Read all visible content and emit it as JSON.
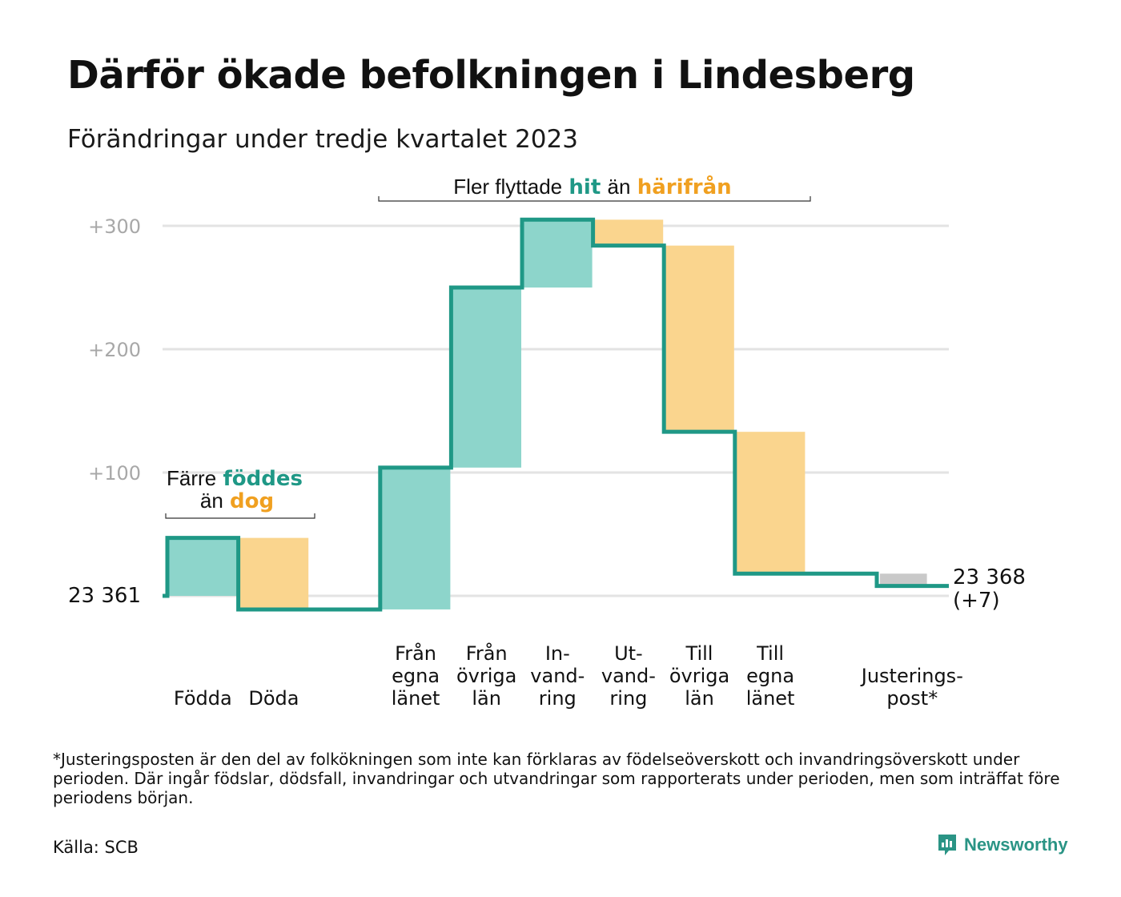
{
  "title": "Därför ökade befolkningen i Lindesberg",
  "subtitle": "Förändringar under tredje kvartalet 2023",
  "colors": {
    "inflow": "#8dd5cb",
    "outflow": "#fad58e",
    "line": "#1f9886",
    "adjustment": "#c9c9c9",
    "grid": "#e3e3e3",
    "teal_text": "#1f9886",
    "orange_text": "#f0a020"
  },
  "annotations": {
    "births": {
      "pre": "Färre",
      "teal": "föddes",
      "pre2": "än",
      "orange": "dog"
    },
    "moves": {
      "pre": "Fler flyttade",
      "teal": "hit",
      "mid": "än",
      "orange": "härifrån"
    }
  },
  "chart_data": {
    "type": "waterfall",
    "start_label": "23  361",
    "start_value": 0,
    "end_label": "23 368",
    "end_change": "(+7)",
    "yticks": [
      "+100",
      "+200",
      "+300"
    ],
    "ytick_values": [
      100,
      200,
      300
    ],
    "ylim": [
      -20,
      300
    ],
    "grid": true,
    "steps": [
      {
        "label_lines": [
          "Födda"
        ],
        "change": 47,
        "kind": "inflow"
      },
      {
        "label_lines": [
          "Döda"
        ],
        "change": -58,
        "kind": "outflow"
      },
      {
        "label_lines": [],
        "change": 0,
        "kind": "spacer"
      },
      {
        "label_lines": [
          "Från",
          "egna",
          "länet"
        ],
        "change": 115,
        "kind": "inflow"
      },
      {
        "label_lines": [
          "Från",
          "övriga",
          "län"
        ],
        "change": 146,
        "kind": "inflow"
      },
      {
        "label_lines": [
          "In-",
          "vand-",
          "ring"
        ],
        "change": 55,
        "kind": "inflow"
      },
      {
        "label_lines": [
          "Ut-",
          "vand-",
          "ring"
        ],
        "change": -21,
        "kind": "outflow"
      },
      {
        "label_lines": [
          "Till",
          "övriga",
          "län"
        ],
        "change": -151,
        "kind": "outflow"
      },
      {
        "label_lines": [
          "Till",
          "egna",
          "länet"
        ],
        "change": -115,
        "kind": "outflow"
      },
      {
        "label_lines": [],
        "change": 0,
        "kind": "spacer"
      },
      {
        "label_lines": [
          "Justerings-",
          "post*"
        ],
        "change": -10,
        "kind": "adjustment"
      }
    ]
  },
  "footnote": "*Justeringsposten är den del av folkökningen som inte kan förklaras av födelseöverskott och invandringsöverskott under perioden. Där ingår födslar, dödsfall, invandringar och utvandringar som rapporterats under perioden, men som inträffat före periodens början.",
  "source": "Källa: SCB",
  "brand": "Newsworthy"
}
